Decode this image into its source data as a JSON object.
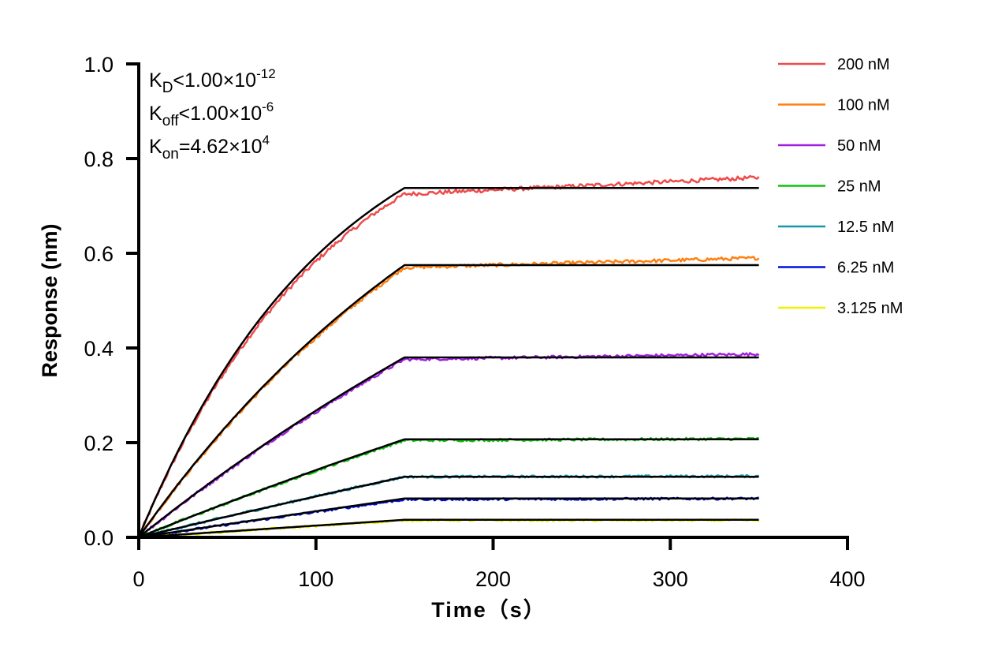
{
  "chart_data": {
    "type": "line",
    "xlabel": "Time（s）",
    "ylabel": "Response (nm)",
    "xlim": [
      0,
      400
    ],
    "ylim": [
      0,
      1.0
    ],
    "xticks": [
      "0",
      "100",
      "200",
      "300",
      "400"
    ],
    "yticks": [
      "0.0",
      "0.2",
      "0.4",
      "0.6",
      "0.8",
      "1.0"
    ],
    "grid": false,
    "legend_position": "top-right",
    "association_end_s": 150,
    "data_end_s": 350,
    "kon_value": 46200,
    "annotations": [
      {
        "symbol": "K",
        "sub": "D",
        "rel": "<1.00×10",
        "exp": "-12"
      },
      {
        "symbol": "K",
        "sub": "off",
        "rel": "<1.00×10",
        "exp": "-6"
      },
      {
        "symbol": "K",
        "sub": "on",
        "rel": "=4.62×10",
        "exp": "4"
      }
    ],
    "series": [
      {
        "name": "200 nM",
        "concentration_nM": 200,
        "color": "#f04a4a",
        "fit_plateau": 0.738,
        "data_at_150": 0.725,
        "data_at_350": 0.76
      },
      {
        "name": "100 nM",
        "concentration_nM": 100,
        "color": "#ff8010",
        "fit_plateau": 0.575,
        "data_at_150": 0.57,
        "data_at_350": 0.59
      },
      {
        "name": "50 nM",
        "concentration_nM": 50,
        "color": "#a020e0",
        "fit_plateau": 0.38,
        "data_at_150": 0.376,
        "data_at_350": 0.387
      },
      {
        "name": "25 nM",
        "concentration_nM": 25,
        "color": "#10c010",
        "fit_plateau": 0.207,
        "data_at_150": 0.205,
        "data_at_350": 0.208
      },
      {
        "name": "12.5 nM",
        "concentration_nM": 12.5,
        "color": "#1898b0",
        "fit_plateau": 0.128,
        "data_at_150": 0.128,
        "data_at_350": 0.129
      },
      {
        "name": "6.25 nM",
        "concentration_nM": 6.25,
        "color": "#0010e0",
        "fit_plateau": 0.082,
        "data_at_150": 0.08,
        "data_at_350": 0.082
      },
      {
        "name": "3.125 nM",
        "concentration_nM": 3.125,
        "color": "#f0f000",
        "fit_plateau": 0.037,
        "data_at_150": 0.036,
        "data_at_350": 0.036
      }
    ],
    "fit_color": "#000000"
  }
}
